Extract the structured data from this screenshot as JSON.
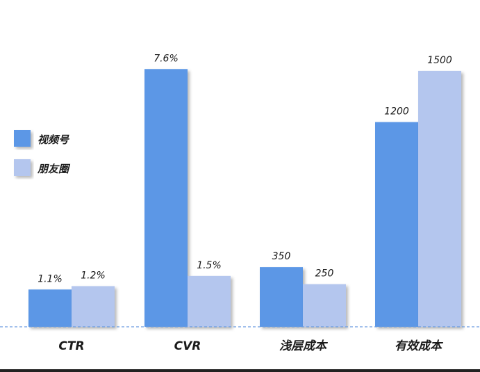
{
  "chart_data": {
    "type": "bar",
    "categories": [
      "CTR",
      "CVR",
      "浅层成本",
      "有效成本"
    ],
    "series": [
      {
        "name": "视频号",
        "color": "#5b97e6",
        "values": [
          1.1,
          7.6,
          350,
          1200
        ],
        "labels": [
          "1.1%",
          "7.6%",
          "350",
          "1200"
        ]
      },
      {
        "name": "朋友圈",
        "color": "#b4c6ee",
        "values": [
          1.2,
          1.5,
          250,
          1500
        ],
        "labels": [
          "1.2%",
          "1.5%",
          "250",
          "1500"
        ]
      }
    ],
    "axis_max": [
      8.2,
      8.2,
      1630,
      1630
    ],
    "legend_position": "left",
    "baseline_style": "dashed",
    "grid": false
  }
}
